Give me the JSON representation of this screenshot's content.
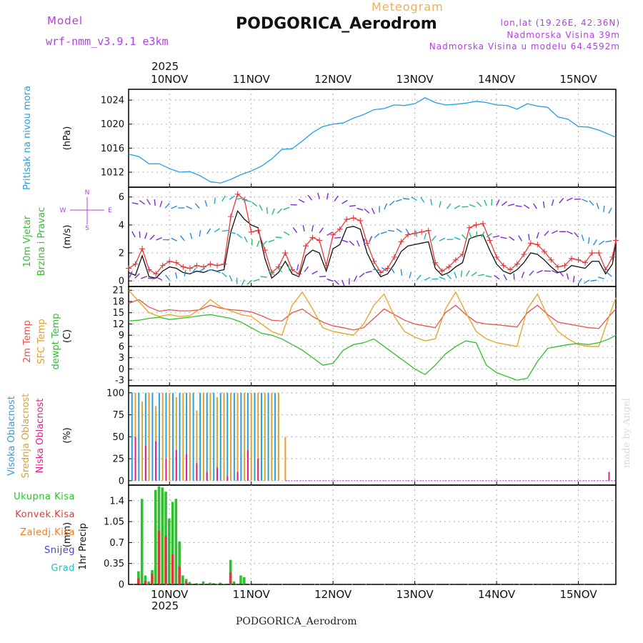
{
  "header": {
    "model_label": "Model",
    "model_name": "wrf-nmm_v3.9.1 e3km",
    "meteogram": "Meteogram",
    "station": "PODGORICA_Aerodrom",
    "lonlat": "lon,lat (19.26E, 42.36N)",
    "elevation": "Nadmorska Visina 39m",
    "model_elevation": "Nadmorska Visina u modelu 64.4592m",
    "year": "2025",
    "footer_station": "PODGORICA_Aerodrom",
    "credit": "made by Angel"
  },
  "colors": {
    "pressure": "#1e9fe6",
    "wind_speed": "#111111",
    "wind_gust": "#e8373a",
    "temp_2m": "#e8534a",
    "temp_sfc": "#e8a020",
    "dewpoint": "#2fbf2f",
    "cloud_high": "#2aa0e0",
    "cloud_mid": "#e0a030",
    "cloud_low": "#e0208a",
    "precip_total": "#2fbf2f",
    "precip_conv": "#e8373a",
    "precip_frozen": "#f07a20",
    "snow": "#4444dd",
    "hail": "#20c0c0",
    "violet": "#b040e0"
  },
  "chart_data": [
    {
      "id": "pressure",
      "type": "line",
      "ylabel_primary": "Pritisak na nivou mora",
      "unit": "(hPa)",
      "ylim": [
        1009.5,
        1025.8
      ],
      "yticks": [
        1012,
        1016,
        1020,
        1024
      ],
      "x_axis": {
        "units": "hours from 9 NOV 12UTC",
        "xlim": [
          0,
          143
        ],
        "top_labels": [
          "10NOV",
          "11NOV",
          "12NOV",
          "13NOV",
          "14NOV",
          "15NOV"
        ],
        "bottom_labels": [
          "10NOV",
          "11NOV",
          "12NOV",
          "13NOV",
          "14NOV",
          "15NOV"
        ],
        "day_starts": [
          12,
          36,
          60,
          84,
          108,
          132
        ]
      },
      "series": [
        {
          "name": "MSLP",
          "x": [
            0,
            3,
            6,
            9,
            12,
            15,
            18,
            21,
            24,
            27,
            30,
            33,
            36,
            39,
            42,
            45,
            48,
            51,
            54,
            57,
            60,
            63,
            66,
            69,
            72,
            75,
            78,
            81,
            84,
            87,
            90,
            93,
            96,
            99,
            102,
            105,
            108,
            111,
            114,
            117,
            120,
            123,
            126,
            129,
            132,
            135,
            138,
            141,
            143
          ],
          "y": [
            1015,
            1014.6,
            1013.4,
            1013.4,
            1012.6,
            1012,
            1012.1,
            1011.4,
            1010.4,
            1010.2,
            1010.8,
            1011.6,
            1012.2,
            1013,
            1014.2,
            1015.8,
            1015.9,
            1017.2,
            1018.6,
            1019.6,
            1020,
            1020.2,
            1021,
            1021.6,
            1022.4,
            1022.6,
            1023.2,
            1023.1,
            1023.4,
            1024.4,
            1023.6,
            1023.2,
            1023.3,
            1023.5,
            1023.8,
            1023.6,
            1023.2,
            1023.1,
            1022.5,
            1023.4,
            1023,
            1022.8,
            1021.2,
            1020.8,
            1019.6,
            1019.5,
            1019,
            1018.3,
            1017.8
          ]
        }
      ]
    },
    {
      "id": "wind",
      "type": "line",
      "ylabel_primary": "10m Vjetar",
      "ylabel_secondary": "Brzina i Pravac",
      "unit": "(m/s)",
      "compass_legend": [
        "N",
        "W",
        "E",
        "S"
      ],
      "ylim": [
        -0.4,
        6.7
      ],
      "yticks": [
        0,
        2,
        4,
        6
      ],
      "series": [
        {
          "name": "Wind speed",
          "x": [
            0,
            2,
            4,
            6,
            8,
            10,
            12,
            14,
            16,
            18,
            20,
            22,
            24,
            26,
            28,
            30,
            32,
            34,
            36,
            38,
            40,
            42,
            44,
            46,
            48,
            50,
            52,
            54,
            56,
            58,
            60,
            62,
            64,
            66,
            68,
            70,
            72,
            74,
            76,
            78,
            80,
            82,
            84,
            86,
            88,
            90,
            92,
            94,
            96,
            98,
            100,
            102,
            104,
            106,
            108,
            110,
            112,
            114,
            116,
            118,
            120,
            122,
            124,
            126,
            128,
            130,
            132,
            134,
            136,
            138,
            140,
            142,
            143
          ],
          "y": [
            0.6,
            0.4,
            1.8,
            0.3,
            0.2,
            0.7,
            1.0,
            0.9,
            0.6,
            0.5,
            0.7,
            0.6,
            0.8,
            0.7,
            0.8,
            3.5,
            5.0,
            4.4,
            4.0,
            3.8,
            1.6,
            0.2,
            0.6,
            1.4,
            0.5,
            0.3,
            1.8,
            2.2,
            2.0,
            0.7,
            2.3,
            2.6,
            3.8,
            3.9,
            3.7,
            2.0,
            1.0,
            0.3,
            0.5,
            1.2,
            2.1,
            2.5,
            2.6,
            2.7,
            2.8,
            0.9,
            0.4,
            0.6,
            1.0,
            1.3,
            3.0,
            3.2,
            3.3,
            2.2,
            1.2,
            0.7,
            0.5,
            0.8,
            1.3,
            2.0,
            1.9,
            1.5,
            1.0,
            0.6,
            0.7,
            1.1,
            1.0,
            0.9,
            1.4,
            1.4,
            0.5,
            1.2,
            2.8
          ]
        },
        {
          "name": "Wind gust",
          "x": [
            0,
            2,
            4,
            6,
            8,
            10,
            12,
            14,
            16,
            18,
            20,
            22,
            24,
            26,
            28,
            30,
            32,
            34,
            36,
            38,
            40,
            42,
            44,
            46,
            48,
            50,
            52,
            54,
            56,
            58,
            60,
            62,
            64,
            66,
            68,
            70,
            72,
            74,
            76,
            78,
            80,
            82,
            84,
            86,
            88,
            90,
            92,
            94,
            96,
            98,
            100,
            102,
            104,
            106,
            108,
            110,
            112,
            114,
            116,
            118,
            120,
            122,
            124,
            126,
            128,
            130,
            132,
            134,
            136,
            138,
            140,
            142,
            143
          ],
          "y": [
            0.9,
            1.2,
            2.3,
            0.8,
            0.5,
            1.1,
            1.4,
            1.3,
            1.0,
            0.9,
            1.1,
            1.0,
            1.2,
            1.1,
            1.2,
            4.6,
            6.2,
            5.8,
            3.5,
            3.6,
            2.2,
            0.6,
            1.0,
            2.0,
            0.8,
            0.5,
            2.5,
            3.1,
            2.9,
            1.1,
            3.3,
            3.7,
            4.4,
            4.5,
            4.3,
            2.7,
            1.4,
            0.6,
            0.9,
            1.7,
            2.8,
            3.3,
            3.4,
            3.5,
            3.6,
            1.3,
            0.7,
            1.0,
            1.5,
            1.9,
            3.8,
            4.0,
            4.1,
            2.9,
            1.7,
            1.1,
            0.8,
            1.2,
            1.9,
            2.7,
            2.6,
            2.1,
            1.5,
            1.0,
            1.1,
            1.6,
            1.5,
            1.3,
            2.0,
            2.0,
            0.8,
            1.7,
            2.9
          ]
        }
      ]
    },
    {
      "id": "temperature",
      "type": "line",
      "ylabel_primary": "2m Temp",
      "ylabel_secondary": "SFC Temp",
      "ylabel_tertiary": "dewpt Temp",
      "unit": "(C)",
      "ylim": [
        -4.5,
        22
      ],
      "yticks": [
        -3,
        0,
        3,
        6,
        9,
        12,
        15,
        18,
        21
      ],
      "series": [
        {
          "name": "2m Temp",
          "x": [
            0,
            3,
            6,
            9,
            12,
            15,
            18,
            21,
            24,
            27,
            30,
            33,
            36,
            39,
            42,
            45,
            48,
            51,
            54,
            57,
            60,
            63,
            66,
            69,
            72,
            75,
            78,
            81,
            84,
            87,
            90,
            93,
            96,
            99,
            102,
            105,
            108,
            111,
            114,
            117,
            120,
            123,
            126,
            129,
            132,
            135,
            138,
            141,
            143
          ],
          "y": [
            17.5,
            18.5,
            16.5,
            15.4,
            15.8,
            15.5,
            15.5,
            15.8,
            17.0,
            16.2,
            15.8,
            15.6,
            15.2,
            14.2,
            13.0,
            12.8,
            15.0,
            16.0,
            14.0,
            12.5,
            11.5,
            11.0,
            10.4,
            11.0,
            13.5,
            16.0,
            14.5,
            13.0,
            12.0,
            11.5,
            11.0,
            15.0,
            17.0,
            14.5,
            12.5,
            12.0,
            11.8,
            11.5,
            11.2,
            15.0,
            17.0,
            14.5,
            12.5,
            12.0,
            11.5,
            11.0,
            10.8,
            14.0,
            16.0
          ]
        },
        {
          "name": "SFC Temp",
          "x": [
            0,
            3,
            6,
            9,
            12,
            15,
            18,
            21,
            24,
            27,
            30,
            33,
            36,
            39,
            42,
            45,
            48,
            51,
            54,
            57,
            60,
            63,
            66,
            69,
            72,
            75,
            78,
            81,
            84,
            87,
            90,
            93,
            96,
            99,
            102,
            105,
            108,
            111,
            114,
            117,
            120,
            123,
            126,
            129,
            132,
            135,
            138,
            141,
            143
          ],
          "y": [
            21.0,
            18.0,
            15.0,
            14.0,
            14.5,
            14.0,
            14.2,
            16.0,
            18.5,
            16.5,
            15.5,
            14.5,
            14.0,
            12.0,
            10.0,
            9.0,
            17.0,
            20.5,
            16.0,
            11.0,
            10.0,
            9.5,
            9.0,
            12.0,
            17.0,
            20.0,
            14.0,
            10.0,
            8.5,
            7.5,
            8.0,
            16.0,
            20.5,
            15.0,
            10.0,
            8.0,
            7.0,
            6.5,
            6.0,
            16.0,
            20.0,
            14.0,
            10.0,
            8.0,
            6.5,
            6.0,
            6.0,
            14.0,
            19.0
          ]
        },
        {
          "name": "Dewpoint",
          "x": [
            0,
            3,
            6,
            9,
            12,
            15,
            18,
            21,
            24,
            27,
            30,
            33,
            36,
            39,
            42,
            45,
            48,
            51,
            54,
            57,
            60,
            63,
            66,
            69,
            72,
            75,
            78,
            81,
            84,
            87,
            90,
            93,
            96,
            99,
            102,
            105,
            108,
            111,
            114,
            117,
            120,
            123,
            126,
            129,
            132,
            135,
            138,
            141,
            143
          ],
          "y": [
            12.8,
            13.0,
            13.5,
            13.8,
            13.2,
            13.5,
            13.8,
            14.2,
            14.5,
            14.0,
            13.5,
            12.5,
            11.0,
            9.5,
            9.0,
            8.0,
            6.5,
            5.0,
            3.0,
            1.0,
            1.5,
            5.0,
            6.5,
            7.0,
            8.0,
            6.0,
            4.0,
            2.0,
            0.0,
            -1.5,
            1.0,
            4.0,
            6.0,
            7.5,
            7.0,
            1.0,
            -1.0,
            -2.0,
            -3.0,
            -2.5,
            2.0,
            5.5,
            6.0,
            6.5,
            6.8,
            6.5,
            7.0,
            8.0,
            9.0
          ]
        }
      ]
    },
    {
      "id": "clouds",
      "type": "bar",
      "ylabel_primary": "Visoka Oblacnost",
      "ylabel_secondary": "Srednja Oblacnost",
      "ylabel_tertiary": "Niska Oblacnost",
      "unit": "(%)",
      "ylim": [
        -5,
        108
      ],
      "yticks": [
        0,
        25,
        50,
        75,
        100
      ],
      "series": [
        {
          "name": "High cloud",
          "x": [
            1,
            3,
            5,
            7,
            9,
            11,
            13,
            15,
            17,
            19,
            21,
            23,
            25,
            27,
            29,
            31,
            33,
            35,
            37,
            39,
            41,
            43
          ],
          "y": [
            100,
            100,
            100,
            100,
            100,
            100,
            100,
            100,
            100,
            100,
            100,
            100,
            100,
            100,
            100,
            100,
            100,
            100,
            100,
            100,
            100,
            100
          ]
        },
        {
          "name": "Mid cloud",
          "x": [
            2,
            4,
            6,
            8,
            10,
            12,
            14,
            16,
            18,
            20,
            22,
            24,
            26,
            28,
            30,
            32,
            34,
            36,
            38,
            40,
            42,
            44,
            46
          ],
          "y": [
            100,
            90,
            100,
            85,
            100,
            100,
            95,
            100,
            100,
            80,
            100,
            100,
            95,
            100,
            100,
            100,
            100,
            100,
            100,
            100,
            100,
            100,
            50
          ]
        },
        {
          "name": "Low cloud",
          "x": [
            2,
            5,
            8,
            11,
            14,
            17,
            20,
            23,
            26,
            29,
            32,
            35,
            38,
            141
          ],
          "y": [
            50,
            40,
            45,
            25,
            35,
            30,
            20,
            10,
            15,
            5,
            10,
            35,
            25,
            10
          ]
        }
      ]
    },
    {
      "id": "precip",
      "type": "bar",
      "ylabel_primary": "1hr Precip",
      "unit": "(mm)",
      "legend": [
        "Ukupna Kisa",
        "Konvek.Kisa",
        "Zaledj.Kisa",
        "Snijeg",
        "Grad"
      ],
      "ylim": [
        0,
        1.66
      ],
      "yticks": [
        0,
        0.35,
        0.7,
        1.05,
        1.4
      ],
      "ytick_labels": [
        "0",
        "0.35",
        "0.7",
        "1.05",
        "1.4"
      ],
      "series": [
        {
          "name": "Total rain",
          "x": [
            3,
            4,
            5,
            6,
            7,
            8,
            9,
            10,
            11,
            12,
            13,
            14,
            15,
            16,
            17,
            18,
            19,
            20,
            21,
            22,
            24,
            25,
            27,
            28,
            30,
            31,
            33,
            34
          ],
          "y": [
            0.22,
            1.43,
            0.15,
            0.05,
            0.24,
            1.58,
            1.64,
            1.62,
            1.55,
            1.1,
            1.38,
            1.43,
            0.72,
            0.15,
            0.09,
            0.04,
            0.01,
            0.02,
            0.01,
            0.05,
            0.03,
            0.02,
            0.03,
            0.01,
            0.41,
            0.05,
            0.15,
            0.12
          ]
        },
        {
          "name": "Convective rain",
          "x": [
            3,
            5,
            7,
            9,
            11,
            13,
            15,
            17,
            30
          ],
          "y": [
            0.1,
            0.06,
            0.18,
            0.9,
            0.8,
            0.5,
            0.3,
            0.05,
            0.2
          ]
        }
      ]
    }
  ]
}
